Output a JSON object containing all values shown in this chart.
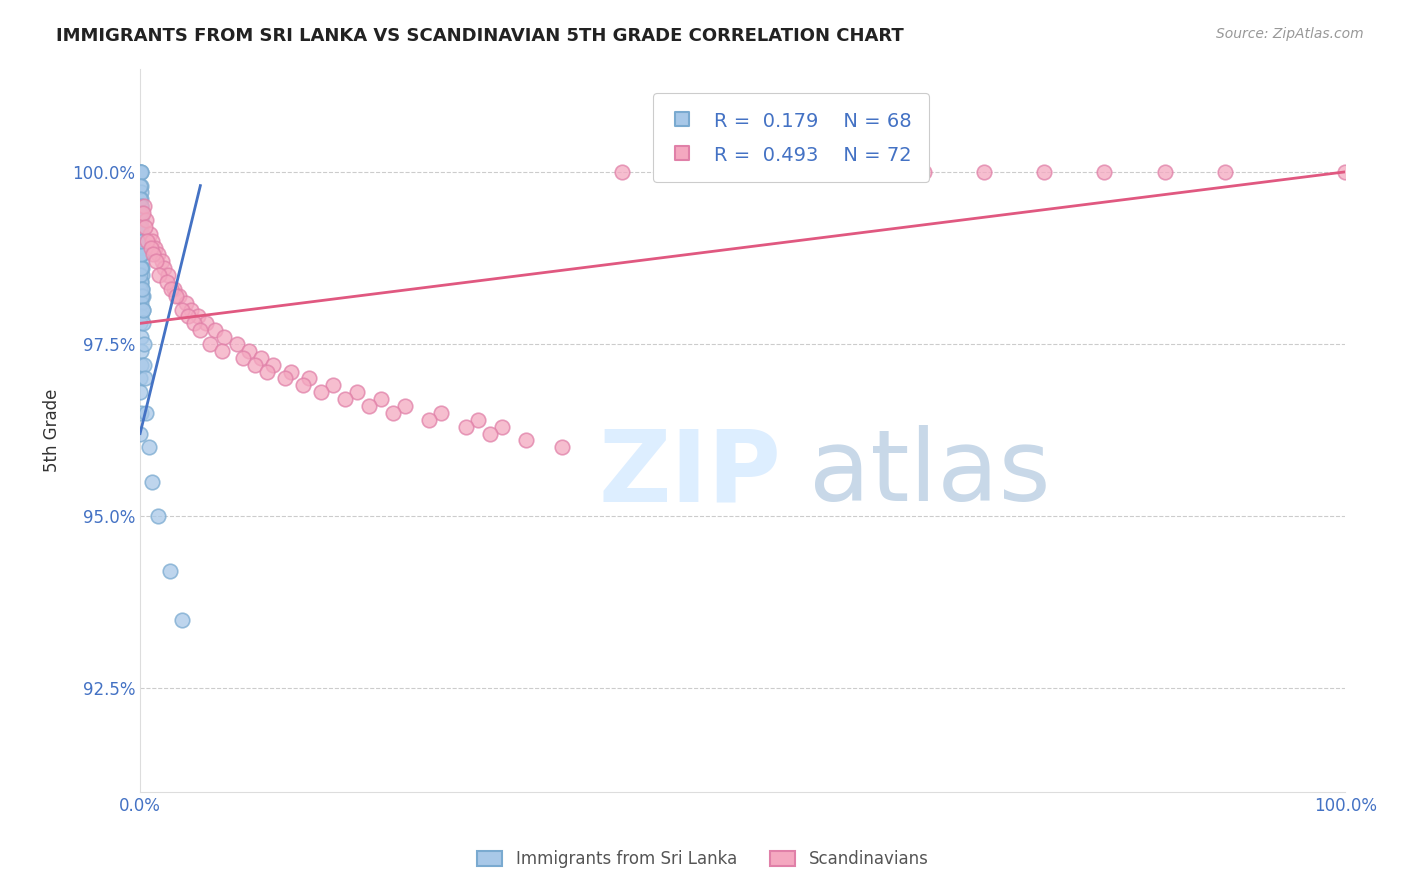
{
  "title": "IMMIGRANTS FROM SRI LANKA VS SCANDINAVIAN 5TH GRADE CORRELATION CHART",
  "source": "Source: ZipAtlas.com",
  "ylabel": "5th Grade",
  "ytick_labels": [
    "92.5%",
    "95.0%",
    "97.5%",
    "100.0%"
  ],
  "ytick_values": [
    92.5,
    95.0,
    97.5,
    100.0
  ],
  "xmin": 0.0,
  "xmax": 100.0,
  "ymin": 91.0,
  "ymax": 101.5,
  "legend_blue_label": "Immigrants from Sri Lanka",
  "legend_pink_label": "Scandinavians",
  "R_blue": 0.179,
  "N_blue": 68,
  "R_pink": 0.493,
  "N_pink": 72,
  "blue_color": "#A8C8E8",
  "pink_color": "#F4A8C0",
  "blue_edge": "#7AAAD0",
  "pink_edge": "#E080A8",
  "blue_line_color": "#4472C4",
  "pink_line_color": "#E05880",
  "background_color": "#FFFFFF",
  "grid_color": "#CCCCCC",
  "title_color": "#222222",
  "axis_label_color": "#4472C4",
  "blue_scatter_x": [
    0.02,
    0.03,
    0.04,
    0.05,
    0.06,
    0.07,
    0.08,
    0.09,
    0.1,
    0.1,
    0.11,
    0.12,
    0.13,
    0.14,
    0.15,
    0.16,
    0.17,
    0.18,
    0.19,
    0.2,
    0.02,
    0.03,
    0.04,
    0.05,
    0.06,
    0.07,
    0.08,
    0.09,
    0.1,
    0.1,
    0.02,
    0.03,
    0.04,
    0.05,
    0.06,
    0.07,
    0.08,
    0.09,
    0.02,
    0.03,
    0.04,
    0.05,
    0.03,
    0.04,
    0.05,
    0.06,
    0.02,
    0.03,
    0.04,
    0.02,
    0.21,
    0.25,
    0.3,
    0.35,
    0.4,
    0.5,
    0.7,
    1.0,
    1.5,
    2.5,
    3.5,
    0.15,
    0.2,
    0.12,
    0.08,
    0.06,
    0.04,
    0.03
  ],
  "blue_scatter_y": [
    100.0,
    100.0,
    100.0,
    100.0,
    99.8,
    99.7,
    99.6,
    99.5,
    99.4,
    99.3,
    99.2,
    99.1,
    99.0,
    98.9,
    98.8,
    98.7,
    98.6,
    98.5,
    98.3,
    98.2,
    99.8,
    99.6,
    99.5,
    99.3,
    99.2,
    99.0,
    98.8,
    98.6,
    98.4,
    98.2,
    99.4,
    99.2,
    99.0,
    98.8,
    98.6,
    98.4,
    98.2,
    98.0,
    98.5,
    98.3,
    98.1,
    97.9,
    97.8,
    97.6,
    97.4,
    97.2,
    97.0,
    96.8,
    96.5,
    96.2,
    98.0,
    97.8,
    97.5,
    97.2,
    97.0,
    96.5,
    96.0,
    95.5,
    95.0,
    94.2,
    93.5,
    98.2,
    98.0,
    98.3,
    98.6,
    98.8,
    99.0,
    99.2
  ],
  "pink_scatter_x": [
    0.3,
    0.5,
    0.8,
    1.0,
    1.2,
    1.5,
    1.8,
    2.0,
    2.3,
    2.8,
    3.2,
    3.8,
    4.2,
    4.8,
    5.5,
    6.2,
    7.0,
    8.0,
    9.0,
    10.0,
    11.0,
    12.5,
    14.0,
    16.0,
    18.0,
    20.0,
    22.0,
    25.0,
    28.0,
    30.0,
    0.2,
    0.4,
    0.6,
    0.9,
    1.1,
    1.3,
    1.6,
    2.2,
    2.6,
    3.0,
    3.5,
    4.0,
    4.5,
    5.0,
    5.8,
    6.8,
    8.5,
    9.5,
    10.5,
    12.0,
    13.5,
    15.0,
    17.0,
    19.0,
    21.0,
    24.0,
    27.0,
    29.0,
    32.0,
    35.0,
    40.0,
    45.0,
    50.0,
    55.0,
    60.0,
    65.0,
    70.0,
    75.0,
    80.0,
    85.0,
    90.0,
    100.0
  ],
  "pink_scatter_y": [
    99.5,
    99.3,
    99.1,
    99.0,
    98.9,
    98.8,
    98.7,
    98.6,
    98.5,
    98.3,
    98.2,
    98.1,
    98.0,
    97.9,
    97.8,
    97.7,
    97.6,
    97.5,
    97.4,
    97.3,
    97.2,
    97.1,
    97.0,
    96.9,
    96.8,
    96.7,
    96.6,
    96.5,
    96.4,
    96.3,
    99.4,
    99.2,
    99.0,
    98.9,
    98.8,
    98.7,
    98.5,
    98.4,
    98.3,
    98.2,
    98.0,
    97.9,
    97.8,
    97.7,
    97.5,
    97.4,
    97.3,
    97.2,
    97.1,
    97.0,
    96.9,
    96.8,
    96.7,
    96.6,
    96.5,
    96.4,
    96.3,
    96.2,
    96.1,
    96.0,
    100.0,
    100.0,
    100.0,
    100.0,
    100.0,
    100.0,
    100.0,
    100.0,
    100.0,
    100.0,
    100.0,
    100.0
  ]
}
